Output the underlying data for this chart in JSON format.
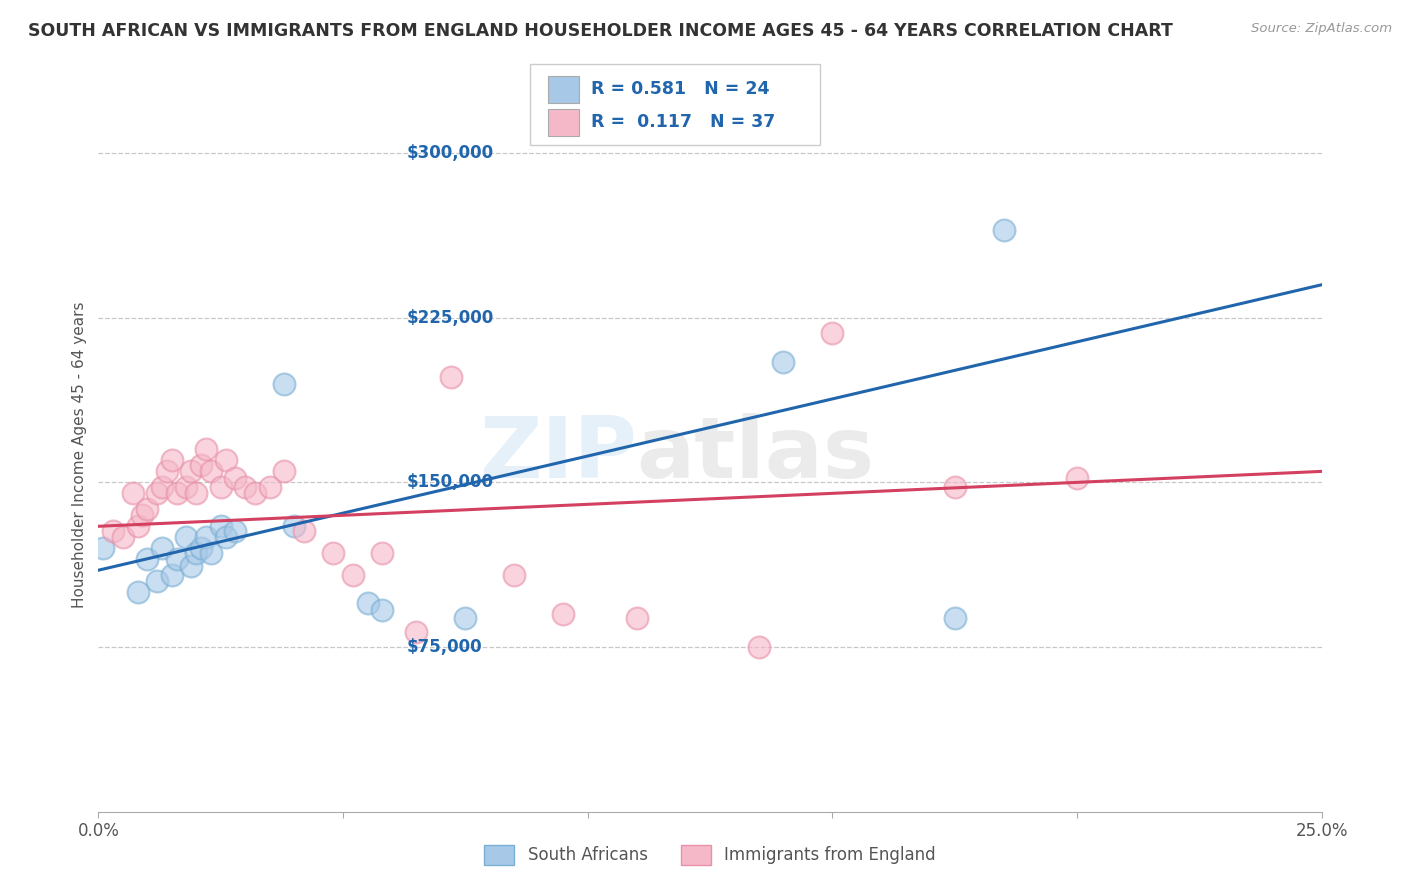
{
  "title": "SOUTH AFRICAN VS IMMIGRANTS FROM ENGLAND HOUSEHOLDER INCOME AGES 45 - 64 YEARS CORRELATION CHART",
  "source": "Source: ZipAtlas.com",
  "ylabel": "Householder Income Ages 45 - 64 years",
  "xlim": [
    0.0,
    0.25
  ],
  "ylim": [
    0,
    325000
  ],
  "yticks": [
    75000,
    150000,
    225000,
    300000
  ],
  "ytick_labels": [
    "$75,000",
    "$150,000",
    "$225,000",
    "$300,000"
  ],
  "background_color": "#ffffff",
  "grid_color": "#c8c8c8",
  "watermark_zip": "ZIP",
  "watermark_atlas": "atlas",
  "blue_label": "South Africans",
  "pink_label": "Immigrants from England",
  "blue_R": "0.581",
  "blue_N": "24",
  "pink_R": "0.117",
  "pink_N": "37",
  "blue_color": "#a8c8e8",
  "blue_edge_color": "#7aafd4",
  "pink_color": "#f5b8c8",
  "pink_edge_color": "#e890a8",
  "blue_line_color": "#2166ac",
  "pink_line_color": "#d44060",
  "blue_x": [
    0.001,
    0.008,
    0.01,
    0.012,
    0.013,
    0.015,
    0.016,
    0.018,
    0.019,
    0.02,
    0.021,
    0.022,
    0.023,
    0.025,
    0.026,
    0.028,
    0.038,
    0.04,
    0.055,
    0.058,
    0.075,
    0.14,
    0.175,
    0.185
  ],
  "blue_y": [
    120000,
    100000,
    115000,
    105000,
    120000,
    108000,
    115000,
    125000,
    112000,
    118000,
    120000,
    125000,
    118000,
    130000,
    125000,
    128000,
    195000,
    130000,
    95000,
    92000,
    88000,
    205000,
    88000,
    265000
  ],
  "pink_x": [
    0.003,
    0.005,
    0.007,
    0.008,
    0.009,
    0.01,
    0.012,
    0.013,
    0.014,
    0.015,
    0.016,
    0.018,
    0.019,
    0.02,
    0.021,
    0.022,
    0.023,
    0.025,
    0.026,
    0.028,
    0.03,
    0.032,
    0.035,
    0.038,
    0.042,
    0.048,
    0.052,
    0.058,
    0.065,
    0.072,
    0.085,
    0.095,
    0.11,
    0.135,
    0.15,
    0.175,
    0.2
  ],
  "pink_y": [
    128000,
    125000,
    145000,
    130000,
    135000,
    138000,
    145000,
    148000,
    155000,
    160000,
    145000,
    148000,
    155000,
    145000,
    158000,
    165000,
    155000,
    148000,
    160000,
    152000,
    148000,
    145000,
    148000,
    155000,
    128000,
    118000,
    108000,
    118000,
    82000,
    198000,
    108000,
    90000,
    88000,
    75000,
    218000,
    148000,
    152000
  ]
}
